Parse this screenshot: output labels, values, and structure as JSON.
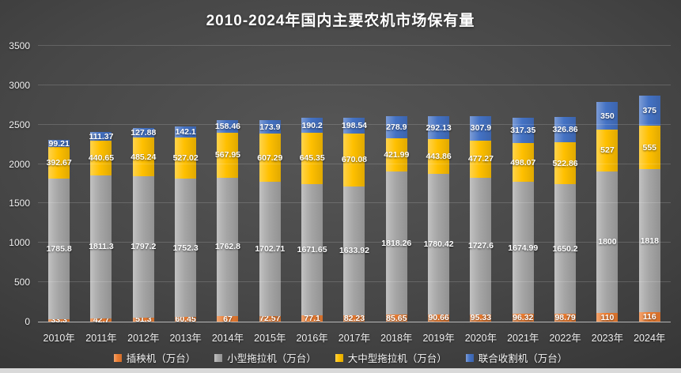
{
  "title": "2010-2024年国内主要农机市场保有量",
  "chart_data": {
    "type": "bar",
    "stacked": true,
    "title": "2010-2024年国内主要农机市场保有量",
    "unit": "万台",
    "categories": [
      "2010年",
      "2011年",
      "2012年",
      "2013年",
      "2014年",
      "2015年",
      "2016年",
      "2017年",
      "2018年",
      "2019年",
      "2020年",
      "2021年",
      "2022年",
      "2023年",
      "2024年"
    ],
    "series": [
      {
        "name": "插秧机（万台）",
        "color": "#ED7D31",
        "values": [
          33.3,
          42.7,
          51.3,
          60.45,
          67,
          72.57,
          77.1,
          82.23,
          85.65,
          90.66,
          95.33,
          96.32,
          98.79,
          110,
          116
        ]
      },
      {
        "name": "小型拖拉机（万台）",
        "color": "#A6A6A6",
        "values": [
          1785.8,
          1811.3,
          1797.2,
          1752.3,
          1762.8,
          1702.71,
          1671.65,
          1633.92,
          1818.26,
          1780.42,
          1727.6,
          1674.99,
          1650.2,
          1800,
          1818
        ]
      },
      {
        "name": "大中型拖拉机（万台）",
        "color": "#FFC000",
        "values": [
          392.67,
          440.65,
          485.24,
          527.02,
          567.95,
          607.29,
          645.35,
          670.08,
          421.99,
          443.86,
          477.27,
          498.07,
          522.86,
          527,
          555
        ]
      },
      {
        "name": "联合收割机（万台）",
        "color": "#4472C4",
        "values": [
          99.21,
          111.37,
          127.88,
          142.1,
          158.46,
          173.9,
          190.2,
          198.54,
          278.9,
          292.13,
          307.9,
          317.35,
          326.86,
          350,
          375
        ]
      }
    ],
    "xlabel": "",
    "ylabel": "",
    "ylim": [
      0,
      3500
    ],
    "yticks": [
      0,
      500,
      1000,
      1500,
      2000,
      2500,
      3000,
      3500
    ],
    "grid": true,
    "legend_position": "bottom",
    "colors": {
      "background_center": "#565656",
      "background_edge": "#262626",
      "gridline": "#5f5f5f",
      "text": "#ffffff",
      "bottom_strip": "#d9d9d9"
    }
  }
}
